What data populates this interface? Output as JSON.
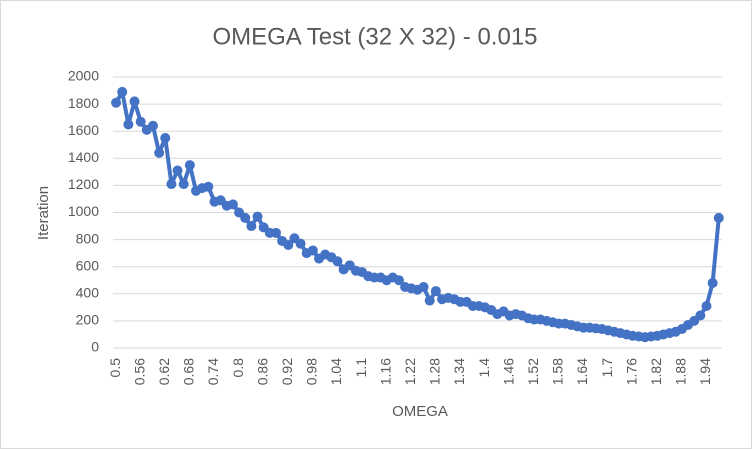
{
  "chart_data": {
    "type": "line",
    "title": "OMEGA Test (32 X 32) - 0.015",
    "x_label": "OMEGA",
    "y_label": "Iteration",
    "categories": [
      "0.5",
      null,
      null,
      null,
      "0.56",
      null,
      null,
      null,
      "0.62",
      null,
      null,
      null,
      "0.68",
      null,
      null,
      null,
      "0.74",
      null,
      null,
      null,
      "0.8",
      null,
      null,
      null,
      "0.86",
      null,
      null,
      null,
      "0.92",
      null,
      null,
      null,
      "0.98",
      null,
      null,
      null,
      "1.04",
      null,
      null,
      null,
      "1.1",
      null,
      null,
      null,
      "1.16",
      null,
      null,
      null,
      "1.22",
      null,
      null,
      null,
      "1.28",
      null,
      null,
      null,
      "1.34",
      null,
      null,
      null,
      "1.4",
      null,
      null,
      null,
      "1.46",
      null,
      null,
      null,
      "1.52",
      null,
      null,
      null,
      "1.58",
      null,
      null,
      null,
      "1.64",
      null,
      null,
      null,
      "1.7",
      null,
      null,
      null,
      "1.76",
      null,
      null,
      null,
      "1.82",
      null,
      null,
      null,
      "1.88",
      null,
      null,
      null,
      "1.94",
      null,
      null
    ],
    "series": [
      {
        "name": "Iteration",
        "color": "#4472c4",
        "values": [
          1810,
          1890,
          1650,
          1820,
          1670,
          1610,
          1640,
          1440,
          1550,
          1210,
          1310,
          1210,
          1350,
          1160,
          1180,
          1190,
          1080,
          1090,
          1050,
          1060,
          1000,
          960,
          900,
          970,
          890,
          850,
          850,
          790,
          760,
          810,
          770,
          700,
          720,
          660,
          690,
          670,
          640,
          580,
          610,
          570,
          560,
          530,
          520,
          520,
          500,
          520,
          500,
          450,
          440,
          430,
          450,
          350,
          420,
          360,
          370,
          360,
          340,
          340,
          310,
          310,
          300,
          280,
          250,
          270,
          240,
          250,
          240,
          220,
          210,
          210,
          200,
          190,
          180,
          180,
          170,
          160,
          150,
          150,
          145,
          140,
          130,
          120,
          110,
          100,
          90,
          85,
          80,
          85,
          90,
          100,
          110,
          120,
          140,
          170,
          200,
          240,
          310,
          480,
          960
        ]
      }
    ],
    "ylim": [
      0,
      2000
    ],
    "yticks": [
      0,
      200,
      400,
      600,
      800,
      1000,
      1200,
      1400,
      1600,
      1800,
      2000
    ],
    "grid": true
  }
}
